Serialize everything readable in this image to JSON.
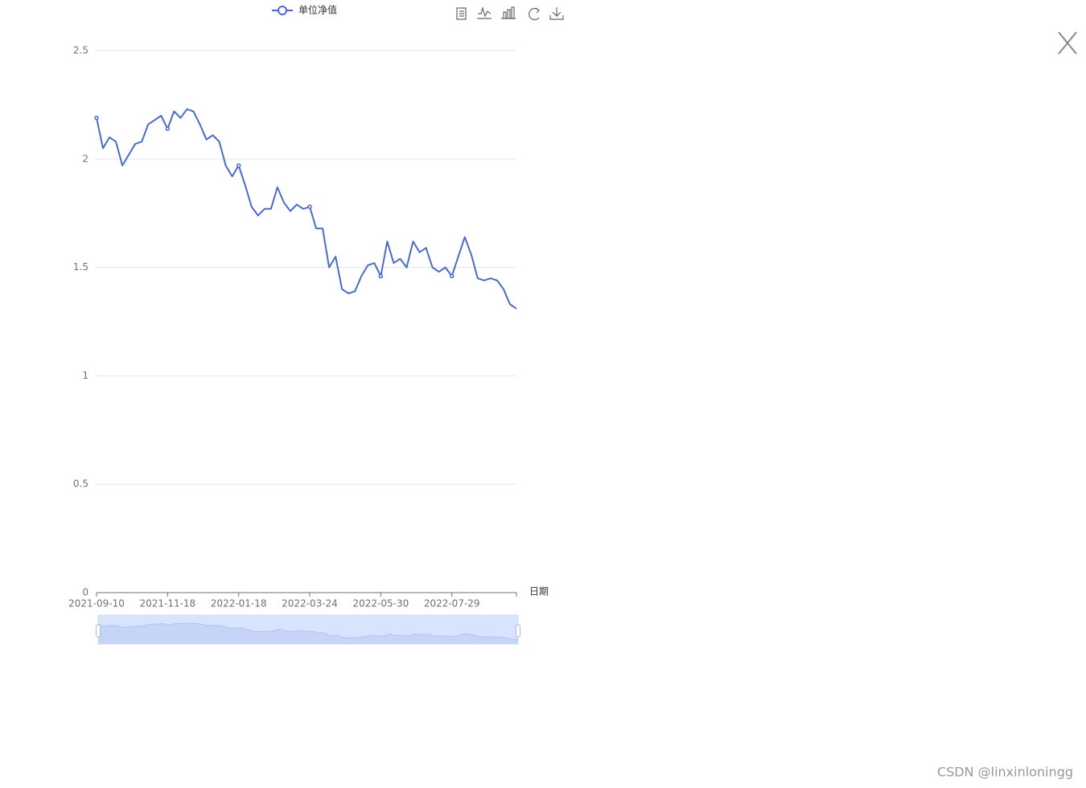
{
  "chart_data": {
    "type": "line",
    "x_label": "日期",
    "categories": [
      "2021-09-10",
      null,
      null,
      null,
      null,
      null,
      null,
      null,
      null,
      null,
      null,
      "2021-11-18",
      null,
      null,
      null,
      null,
      null,
      null,
      null,
      null,
      null,
      null,
      "2022-01-18",
      null,
      null,
      null,
      null,
      null,
      null,
      null,
      null,
      null,
      null,
      "2022-03-24",
      null,
      null,
      null,
      null,
      null,
      null,
      null,
      null,
      null,
      null,
      "2022-05-30",
      null,
      null,
      null,
      null,
      null,
      null,
      null,
      null,
      null,
      null,
      "2022-07-29",
      null,
      null,
      null,
      null,
      null,
      null,
      null,
      null,
      null,
      null
    ],
    "series": [
      {
        "name": "单位净值",
        "color": "#4a6bc8",
        "values": [
          2.19,
          2.05,
          2.1,
          2.08,
          1.97,
          2.02,
          2.07,
          2.08,
          2.16,
          2.18,
          2.2,
          2.14,
          2.22,
          2.19,
          2.23,
          2.22,
          2.16,
          2.09,
          2.11,
          2.08,
          1.97,
          1.92,
          1.97,
          1.88,
          1.78,
          1.74,
          1.77,
          1.77,
          1.87,
          1.8,
          1.76,
          1.79,
          1.77,
          1.78,
          1.68,
          1.68,
          1.5,
          1.55,
          1.4,
          1.38,
          1.39,
          1.46,
          1.51,
          1.52,
          1.46,
          1.62,
          1.52,
          1.54,
          1.5,
          1.62,
          1.57,
          1.59,
          1.5,
          1.48,
          1.5,
          1.46,
          1.55,
          1.64,
          1.56,
          1.45,
          1.44,
          1.45,
          1.44,
          1.4,
          1.33,
          1.31
        ]
      }
    ],
    "ylim": [
      0,
      2.5
    ],
    "yticks": [
      0,
      0.5,
      1,
      1.5,
      2,
      2.5
    ],
    "grid": true
  },
  "watermark": "CSDN @linxinloningg"
}
